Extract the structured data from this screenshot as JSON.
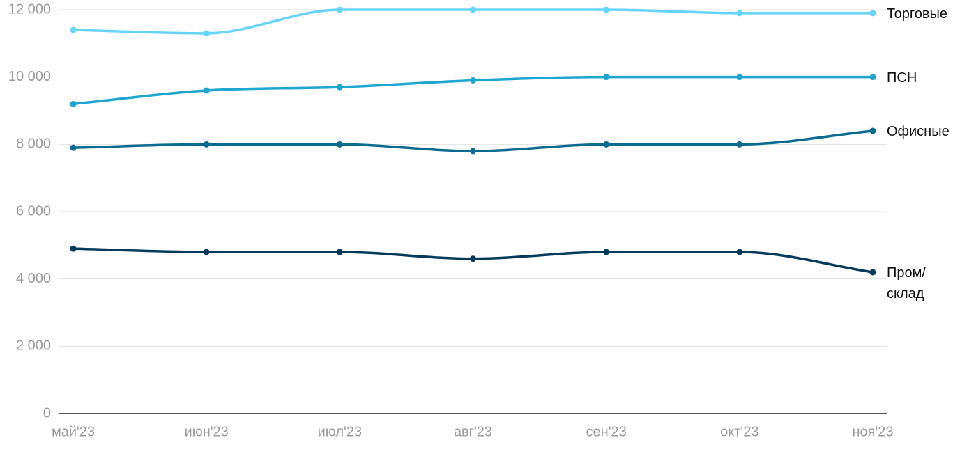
{
  "chart_data": {
    "type": "line",
    "categories": [
      "май'23",
      "июн'23",
      "июл'23",
      "авг'23",
      "сен'23",
      "окт'23",
      "ноя'23"
    ],
    "series": [
      {
        "name": "Торговые",
        "color": "#66d4f8",
        "values": [
          11400,
          11300,
          12000,
          12000,
          12000,
          11900,
          11900
        ]
      },
      {
        "name": "ПСН",
        "color": "#1ea5d0",
        "values": [
          9200,
          9600,
          9700,
          9900,
          10000,
          10000,
          10000
        ]
      },
      {
        "name": "Офисные",
        "color": "#0b6a8f",
        "values": [
          7900,
          8000,
          8000,
          7800,
          8000,
          8000,
          8400
        ]
      },
      {
        "name": "Пром/ склад",
        "color": "#063a5a",
        "values": [
          4900,
          4800,
          4800,
          4600,
          4800,
          4800,
          4200
        ]
      }
    ],
    "ylim": [
      0,
      12000
    ],
    "yticks": [
      0,
      {
        "value": 2000,
        "label": "2 000"
      },
      {
        "value": 4000,
        "label": "4 000"
      },
      {
        "value": 6000,
        "label": "6 000"
      },
      {
        "value": 8000,
        "label": "8 000"
      },
      {
        "value": 10000,
        "label": "10 000"
      },
      {
        "value": 12000,
        "label": "12 000"
      }
    ],
    "grid": true
  }
}
